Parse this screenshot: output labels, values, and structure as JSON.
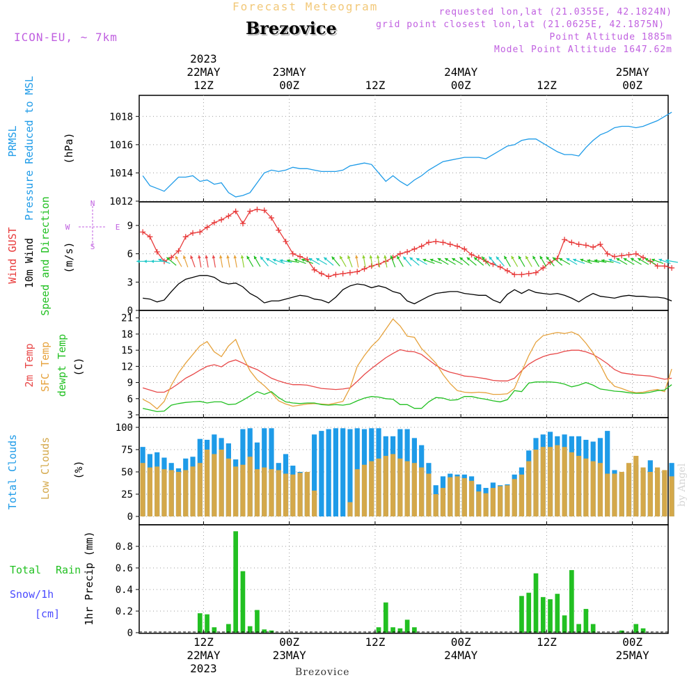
{
  "header": {
    "title": "Forecast Meteogram",
    "station": "Brezovice",
    "model": "ICON-EU, ~ 7km",
    "requested": "requested lon,lat (21.0355E, 42.1824N)",
    "grid_point": "grid point closest lon,lat (21.0625E, 42.1875N)",
    "point_altitude": "Point Altitude 1885m",
    "model_altitude": "Model Point Altitude 1647.62m"
  },
  "footer": {
    "station": "Brezovice",
    "credit": "by Angel"
  },
  "side_labels": {
    "pressure": [
      "PRMSL",
      "Pressure Reduced to MSL",
      "(hPa)"
    ],
    "wind": [
      "Wind GUST",
      "10m Wind",
      "Speed and Direction",
      "(m/s)"
    ],
    "temp": [
      "2m Temp",
      "SFC Temp",
      "dewpt Temp",
      "(C)"
    ],
    "clouds": [
      "Total Clouds",
      "Low Clouds",
      "(%)"
    ],
    "precip_left": [
      "Total",
      "Rain",
      "Snow/1h",
      "[cm]"
    ],
    "precip_axis": "1hr Precip (mm)",
    "compass": [
      "N",
      "W",
      "E",
      "S"
    ]
  },
  "colors": {
    "pressure": "#1e9be8",
    "gust": "#e83a3a",
    "wind": "#000000",
    "temp2m": "#e84848",
    "sfc": "#e6a23c",
    "dewpt": "#22c022",
    "total_clouds": "#1e9be8",
    "low_clouds": "#d4a84a",
    "precip": "#22c022",
    "snow": "#4a4aff",
    "purple": "#c060e0"
  },
  "chart_data": {
    "type": "meteogram",
    "time_start": "2023-05-22 03Z",
    "hours": 64,
    "time_ticks_top": [
      {
        "hour": 9,
        "lines": [
          "2023",
          "22MAY",
          "12Z"
        ]
      },
      {
        "hour": 21,
        "lines": [
          "23MAY",
          "00Z"
        ]
      },
      {
        "hour": 33,
        "lines": [
          "12Z"
        ]
      },
      {
        "hour": 45,
        "lines": [
          "24MAY",
          "00Z"
        ]
      },
      {
        "hour": 57,
        "lines": [
          "12Z"
        ]
      },
      {
        "hour": 69,
        "lines": [
          "25MAY",
          "00Z"
        ]
      }
    ],
    "time_ticks_bottom": [
      {
        "hour": 9,
        "lines": [
          "12Z",
          "22MAY",
          "2023"
        ]
      },
      {
        "hour": 21,
        "lines": [
          "00Z",
          "23MAY"
        ]
      },
      {
        "hour": 33,
        "lines": [
          "12Z"
        ]
      },
      {
        "hour": 45,
        "lines": [
          "00Z",
          "24MAY"
        ]
      },
      {
        "hour": 57,
        "lines": [
          "12Z"
        ]
      },
      {
        "hour": 69,
        "lines": [
          "00Z",
          "25MAY"
        ]
      }
    ],
    "panels": [
      {
        "id": "pressure",
        "ylabel": "Pressure Reduced to MSL (hPa)",
        "ylim": [
          1012,
          1019
        ],
        "yticks": [
          1012,
          1014,
          1016,
          1018
        ],
        "series": [
          {
            "name": "PRMSL",
            "type": "line",
            "color": "#1e9be8",
            "values": [
              1013.8,
              1013.1,
              1012.9,
              1012.7,
              1013.2,
              1013.7,
              1013.7,
              1013.8,
              1013.4,
              1013.5,
              1013.2,
              1013.3,
              1012.6,
              1012.3,
              1012.4,
              1012.6,
              1013.3,
              1014.0,
              1014.2,
              1014.1,
              1014.2,
              1014.4,
              1014.3,
              1014.3,
              1014.2,
              1014.1,
              1014.1,
              1014.1,
              1014.2,
              1014.5,
              1014.6,
              1014.7,
              1014.6,
              1014.0,
              1013.4,
              1013.8,
              1013.4,
              1013.1,
              1013.5,
              1013.8,
              1014.2,
              1014.5,
              1014.8,
              1014.9,
              1015.0,
              1015.1,
              1015.1,
              1015.1,
              1015.0,
              1015.3,
              1015.6,
              1015.9,
              1016.0,
              1016.3,
              1016.4,
              1016.4,
              1016.1,
              1015.8,
              1015.5,
              1015.3,
              1015.3,
              1015.2,
              1015.8,
              1016.3,
              1016.7,
              1016.9,
              1017.2,
              1017.3,
              1017.3,
              1017.2,
              1017.3,
              1017.5,
              1017.7,
              1018.0,
              1018.3
            ]
          }
        ]
      },
      {
        "id": "wind",
        "ylabel": "Wind GUST / 10m Wind Speed and Direction (m/s)",
        "ylim": [
          0,
          11.5
        ],
        "yticks": [
          0,
          3,
          6,
          9
        ],
        "series": [
          {
            "name": "Wind GUST",
            "type": "line+cross",
            "color": "#e83a3a",
            "values": [
              8.3,
              7.8,
              6.2,
              5.2,
              5.6,
              6.3,
              7.8,
              8.2,
              8.3,
              8.8,
              9.3,
              9.6,
              10.0,
              10.5,
              9.2,
              10.5,
              10.7,
              10.6,
              9.8,
              8.5,
              7.3,
              6.0,
              5.7,
              5.4,
              4.3,
              3.9,
              3.6,
              3.8,
              3.9,
              4.0,
              4.1,
              4.4,
              4.7,
              4.9,
              5.2,
              5.6,
              6.0,
              6.2,
              6.5,
              6.8,
              7.2,
              7.3,
              7.2,
              7.0,
              6.8,
              6.5,
              5.9,
              5.6,
              5.2,
              4.9,
              4.6,
              4.2,
              3.8,
              3.8,
              3.9,
              4.0,
              4.5,
              5.1,
              5.5,
              7.5,
              7.2,
              7.0,
              6.9,
              6.7,
              7.0,
              6.0,
              5.7,
              5.8,
              5.9,
              6.0,
              5.6,
              5.2,
              4.7,
              4.7,
              4.5
            ]
          },
          {
            "name": "10m Wind",
            "type": "line",
            "color": "#000000",
            "values": [
              1.3,
              1.2,
              0.9,
              1.1,
              2.0,
              2.8,
              3.3,
              3.5,
              3.7,
              3.7,
              3.5,
              3.0,
              2.8,
              2.9,
              2.5,
              1.8,
              1.4,
              0.8,
              1.0,
              1.0,
              1.2,
              1.4,
              1.6,
              1.5,
              1.2,
              1.1,
              0.8,
              1.4,
              2.2,
              2.6,
              2.8,
              2.7,
              2.4,
              2.6,
              2.4,
              2.0,
              1.8,
              1.0,
              0.7,
              1.1,
              1.5,
              1.8,
              1.9,
              2.0,
              2.0,
              1.8,
              1.7,
              1.6,
              1.6,
              1.1,
              0.8,
              1.7,
              2.2,
              1.8,
              2.2,
              1.9,
              1.8,
              1.7,
              1.8,
              1.6,
              1.3,
              0.9,
              1.4,
              1.8,
              1.5,
              1.4,
              1.3,
              1.5,
              1.6,
              1.5,
              1.5,
              1.4,
              1.4,
              1.3,
              1.0
            ]
          }
        ],
        "arrows": {
          "name": "Wind direction",
          "level": 5.2,
          "directions_deg": [
            90,
            90,
            90,
            110,
            130,
            150,
            160,
            160,
            170,
            170,
            170,
            170,
            170,
            170,
            170,
            150,
            150,
            140,
            120,
            110,
            100,
            100,
            110,
            110,
            120,
            120,
            130,
            140,
            150,
            160,
            170,
            170,
            170,
            170,
            170,
            160,
            150,
            140,
            130,
            120,
            110,
            110,
            120,
            120,
            120,
            130,
            130,
            130,
            140,
            140,
            140,
            150,
            150,
            150,
            150,
            150,
            150,
            140,
            130,
            120,
            120,
            110,
            110,
            100,
            100,
            100,
            110,
            120,
            120,
            120,
            120,
            120,
            110,
            110,
            100
          ]
        }
      },
      {
        "id": "temp",
        "ylabel": "2m Temp / SFC Temp / dewpt Temp (C)",
        "ylim": [
          3,
          22
        ],
        "yticks": [
          3,
          6,
          9,
          12,
          15,
          18,
          21
        ],
        "series": [
          {
            "name": "2m Temp",
            "type": "line",
            "color": "#e84848",
            "values": [
              8.0,
              7.6,
              7.2,
              7.2,
              7.9,
              8.8,
              9.8,
              10.5,
              11.3,
              12.0,
              12.3,
              11.9,
              12.8,
              13.2,
              12.6,
              11.9,
              11.4,
              10.6,
              9.8,
              9.3,
              8.9,
              8.6,
              8.6,
              8.5,
              8.2,
              7.9,
              7.8,
              7.7,
              7.8,
              8.0,
              9.2,
              10.5,
              11.6,
              12.6,
              13.6,
              14.4,
              15.1,
              14.8,
              14.7,
              14.2,
              13.2,
              12.2,
              11.4,
              10.9,
              10.6,
              10.2,
              10.1,
              9.9,
              9.7,
              9.4,
              9.3,
              9.3,
              9.8,
              11.2,
              12.4,
              13.2,
              13.8,
              14.2,
              14.4,
              14.8,
              15.0,
              15.0,
              14.7,
              14.2,
              13.4,
              12.5,
              11.4,
              10.8,
              10.6,
              10.4,
              10.3,
              10.2,
              9.9,
              9.6,
              9.8
            ]
          },
          {
            "name": "SFC Temp",
            "type": "line",
            "color": "#e6a23c",
            "values": [
              5.9,
              5.2,
              4.1,
              5.5,
              8.5,
              10.8,
              12.6,
              14.2,
              15.8,
              16.6,
              14.7,
              13.8,
              15.8,
              17.0,
              13.8,
              11.2,
              9.5,
              8.4,
              7.1,
              5.6,
              5.0,
              4.6,
              4.8,
              5.0,
              5.1,
              5.0,
              4.9,
              5.2,
              5.5,
              8.0,
              12.0,
              14.0,
              15.7,
              17.0,
              18.9,
              20.8,
              19.5,
              17.6,
              17.4,
              15.3,
              14.0,
              12.6,
              10.5,
              8.8,
              7.5,
              7.2,
              7.1,
              7.2,
              7.1,
              6.8,
              6.8,
              6.9,
              7.9,
              11.0,
              14.0,
              16.5,
              17.7,
              18.0,
              18.3,
              18.1,
              18.4,
              17.8,
              16.3,
              14.5,
              12.3,
              9.7,
              8.3,
              7.9,
              7.4,
              7.1,
              7.2,
              7.5,
              7.7,
              7.3,
              11.5
            ]
          },
          {
            "name": "dewpt Temp",
            "type": "line",
            "color": "#22c022",
            "values": [
              4.2,
              3.9,
              3.6,
              3.7,
              4.8,
              5.1,
              5.3,
              5.4,
              5.5,
              5.2,
              5.4,
              5.4,
              4.9,
              5.0,
              5.7,
              6.5,
              7.3,
              6.8,
              7.3,
              6.2,
              5.4,
              5.2,
              5.1,
              5.2,
              5.2,
              4.9,
              4.8,
              4.9,
              4.8,
              5.0,
              5.6,
              6.1,
              6.4,
              6.3,
              6.0,
              5.9,
              4.9,
              4.9,
              4.2,
              4.2,
              5.4,
              6.2,
              6.1,
              5.7,
              5.8,
              6.4,
              6.4,
              6.1,
              5.9,
              5.6,
              5.4,
              5.8,
              7.5,
              7.3,
              8.9,
              9.1,
              9.1,
              9.1,
              9.0,
              8.7,
              8.2,
              8.5,
              9.0,
              8.5,
              7.8,
              7.6,
              7.4,
              7.3,
              7.1,
              7.0,
              7.0,
              7.2,
              7.5,
              7.6,
              8.6
            ]
          }
        ]
      },
      {
        "id": "clouds",
        "ylabel": "Total Clouds / Low Clouds (%)",
        "ylim": [
          0,
          100
        ],
        "yticks": [
          0,
          25,
          50,
          75,
          100
        ],
        "series": [
          {
            "name": "Total Clouds",
            "type": "bar",
            "color": "#1e9be8",
            "values": [
              78,
              70,
              72,
              66,
              60,
              54,
              65,
              67,
              87,
              86,
              92,
              88,
              82,
              64,
              98,
              99,
              83,
              99,
              99,
              60,
              70,
              57,
              50,
              49,
              92,
              96,
              98,
              99,
              99,
              98,
              99,
              98,
              99,
              99,
              90,
              90,
              98,
              98,
              88,
              80,
              60,
              35,
              45,
              48,
              47,
              47,
              45,
              36,
              32,
              38,
              35,
              36,
              47,
              55,
              74,
              88,
              92,
              95,
              90,
              92,
              90,
              90,
              86,
              84,
              88,
              96,
              52,
              48,
              50,
              58,
              52,
              63,
              50,
              50,
              60
            ]
          },
          {
            "name": "Low Clouds",
            "type": "bar",
            "color": "#d4a84a",
            "values": [
              60,
              55,
              56,
              53,
              52,
              50,
              52,
              56,
              60,
              75,
              70,
              75,
              65,
              56,
              58,
              67,
              53,
              55,
              53,
              52,
              48,
              47,
              49,
              50,
              29,
              0,
              0,
              0,
              0,
              16,
              53,
              58,
              62,
              65,
              68,
              70,
              65,
              62,
              60,
              55,
              48,
              25,
              32,
              44,
              45,
              43,
              40,
              28,
              26,
              32,
              34,
              35,
              42,
              47,
              62,
              75,
              78,
              78,
              80,
              78,
              72,
              68,
              65,
              62,
              60,
              48,
              48,
              50,
              60,
              68,
              55,
              50,
              55,
              52,
              45
            ]
          }
        ]
      },
      {
        "id": "precip",
        "ylabel": "1hr Precip (mm)",
        "ylim": [
          0,
          1.0
        ],
        "yticks": [
          0,
          0.2,
          0.4,
          0.6,
          0.8
        ],
        "series": [
          {
            "name": "Total Rain",
            "type": "bar",
            "color": "#22c022",
            "values": [
              0,
              0,
              0,
              0,
              0,
              0,
              0,
              0,
              0.18,
              0.17,
              0.05,
              0,
              0.08,
              0.94,
              0.57,
              0.06,
              0.21,
              0.03,
              0.02,
              0,
              0,
              0,
              0,
              0,
              0,
              0,
              0,
              0,
              0,
              0,
              0,
              0,
              0,
              0.05,
              0.28,
              0.05,
              0.04,
              0.12,
              0.05,
              0,
              0,
              0,
              0,
              0,
              0,
              0,
              0,
              0,
              0,
              0,
              0,
              0,
              0,
              0.34,
              0.37,
              0.55,
              0.33,
              0.31,
              0.36,
              0.16,
              0.58,
              0.08,
              0.22,
              0.08,
              0,
              0,
              0,
              0.02,
              0,
              0.08,
              0.04,
              0,
              0,
              0,
              0
            ]
          }
        ]
      }
    ]
  }
}
